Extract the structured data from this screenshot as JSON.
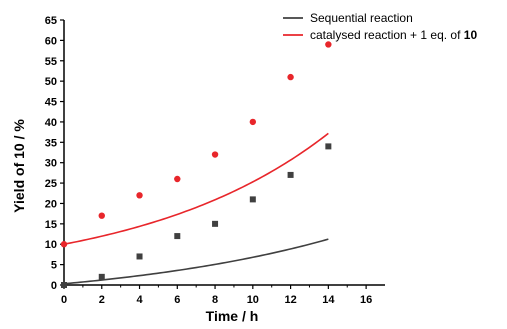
{
  "chart_data": {
    "type": "scatter",
    "xlabel": "Time / h",
    "ylabel": "Yield of 10 / %",
    "xlim": [
      0,
      17
    ],
    "ylim": [
      0,
      65
    ],
    "xticks": [
      0,
      2,
      4,
      6,
      8,
      10,
      12,
      14,
      16
    ],
    "yticks": [
      0,
      5,
      10,
      15,
      20,
      25,
      30,
      35,
      40,
      45,
      50,
      55,
      60,
      65
    ],
    "legend_position": "top-right",
    "series": [
      {
        "name": "Sequential reaction",
        "legend_label": {
          "text": "Sequential reaction",
          "bold": ""
        },
        "color": "#404040",
        "marker": "square",
        "x": [
          0,
          2,
          4,
          6,
          8,
          10,
          12,
          14
        ],
        "y": [
          0,
          2,
          7,
          12,
          15,
          21,
          27,
          34
        ],
        "fit": {
          "y0": 0.3,
          "a": 5.3,
          "k": 0.08
        }
      },
      {
        "name": "catalysed reaction + 1 eq. of 10",
        "legend_label": {
          "text": "catalysed reaction +  1 eq. of ",
          "bold": "10"
        },
        "color": "#e8262b",
        "marker": "circle",
        "x": [
          0,
          2,
          4,
          6,
          8,
          10,
          12,
          14
        ],
        "y": [
          10,
          17,
          22,
          26,
          32,
          40,
          51,
          59
        ],
        "fit": {
          "y0": 0.4,
          "a": 8.9,
          "k": 0.1
        }
      }
    ]
  }
}
